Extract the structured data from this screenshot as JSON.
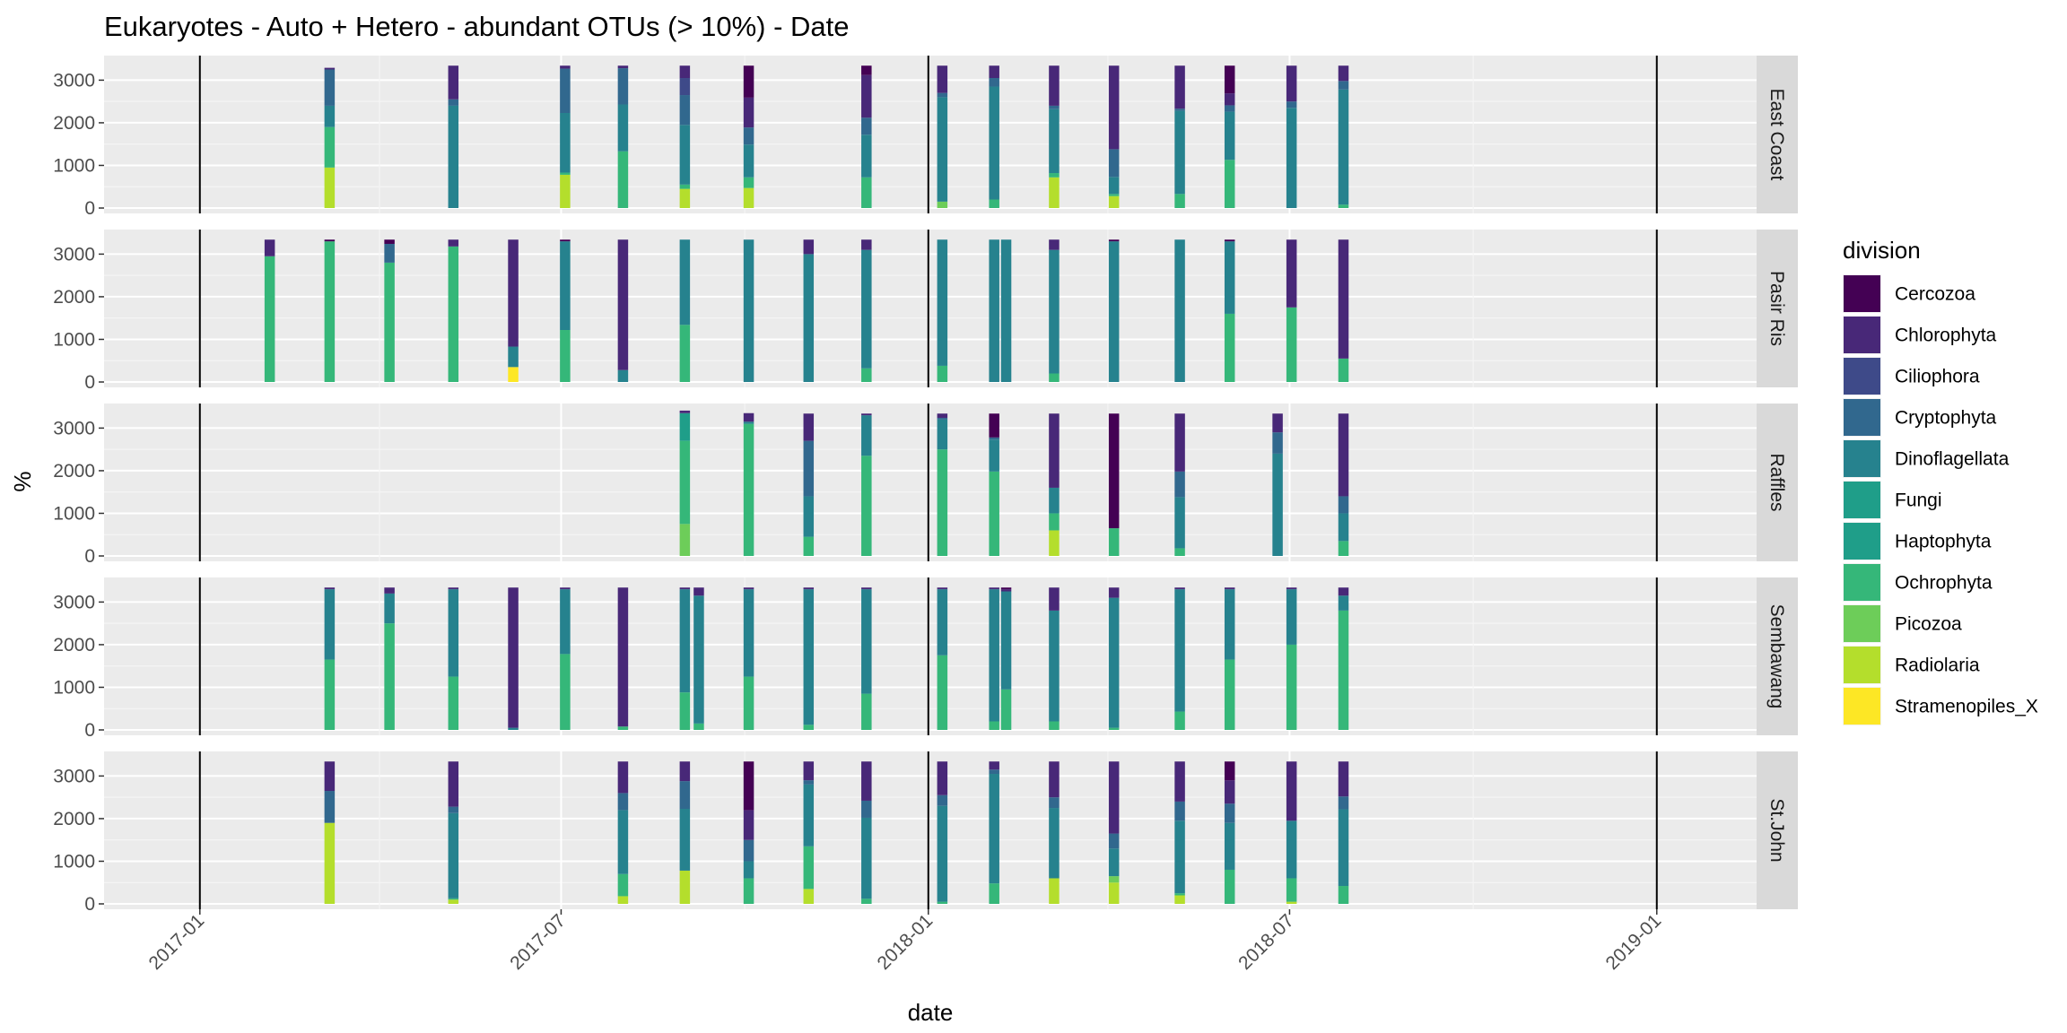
{
  "chart_data": {
    "type": "bar",
    "subtype": "stacked-bar-faceted",
    "title": "Eukaryotes - Auto + Hetero - abundant OTUs (> 10%) - Date",
    "xlabel": "date",
    "ylabel": "%",
    "ylim": [
      0,
      3450
    ],
    "yticks": [
      0,
      1000,
      2000,
      3000
    ],
    "xlim": [
      "2016-11-14",
      "2019-02-20"
    ],
    "xticks": [
      {
        "label": "2017-01",
        "date": "2017-01-01"
      },
      {
        "label": "2017-07",
        "date": "2017-07-01"
      },
      {
        "label": "2018-01",
        "date": "2018-01-01"
      },
      {
        "label": "2018-07",
        "date": "2018-07-01"
      },
      {
        "label": "2019-01",
        "date": "2019-01-01"
      }
    ],
    "vlines": [
      "2017-01-01",
      "2018-01-01",
      "2019-01-01"
    ],
    "grid": true,
    "legend_position": "right",
    "legend_title": "division",
    "divisions": [
      {
        "name": "Cercozoa",
        "color": "#440154"
      },
      {
        "name": "Chlorophyta",
        "color": "#482878"
      },
      {
        "name": "Ciliophora",
        "color": "#3E4A89"
      },
      {
        "name": "Cryptophyta",
        "color": "#31688E"
      },
      {
        "name": "Dinoflagellata",
        "color": "#26828E"
      },
      {
        "name": "Fungi",
        "color": "#1F9E89"
      },
      {
        "name": "Haptophyta",
        "color": "#1F9E89"
      },
      {
        "name": "Ochrophyta",
        "color": "#35B779"
      },
      {
        "name": "Picozoa",
        "color": "#6DCD59"
      },
      {
        "name": "Radiolaria",
        "color": "#B4DE2C"
      },
      {
        "name": "Stramenopiles_X",
        "color": "#FDE725"
      }
    ],
    "stack_order_bottom_to_top": [
      "Stramenopiles_X",
      "Radiolaria",
      "Picozoa",
      "Ochrophyta",
      "Haptophyta",
      "Fungi",
      "Dinoflagellata",
      "Cryptophyta",
      "Ciliophora",
      "Chlorophyta",
      "Cercozoa"
    ],
    "panels": [
      {
        "name": "East Coast",
        "samples": [
          {
            "date": "2017-03-07",
            "values": {
              "Radiolaria": 950,
              "Ochrophyta": 950,
              "Dinoflagellata": 500,
              "Cryptophyta": 850,
              "Chlorophyta": 40
            }
          },
          {
            "date": "2017-05-08",
            "values": {
              "Dinoflagellata": 2400,
              "Cryptophyta": 150,
              "Chlorophyta": 790
            }
          },
          {
            "date": "2017-07-03",
            "values": {
              "Radiolaria": 780,
              "Ochrophyta": 50,
              "Dinoflagellata": 1400,
              "Cryptophyta": 1040,
              "Chlorophyta": 70
            }
          },
          {
            "date": "2017-08-01",
            "values": {
              "Ochrophyta": 1330,
              "Dinoflagellata": 1100,
              "Cryptophyta": 850,
              "Chlorophyta": 60
            }
          },
          {
            "date": "2017-09-01",
            "values": {
              "Radiolaria": 450,
              "Ochrophyta": 100,
              "Dinoflagellata": 1400,
              "Cryptophyta": 700,
              "Ciliophora": 400,
              "Chlorophyta": 290
            }
          },
          {
            "date": "2017-10-03",
            "values": {
              "Radiolaria": 470,
              "Ochrophyta": 250,
              "Dinoflagellata": 770,
              "Cryptophyta": 400,
              "Chlorophyta": 700,
              "Cercozoa": 750
            }
          },
          {
            "date": "2017-12-01",
            "values": {
              "Ochrophyta": 720,
              "Dinoflagellata": 1000,
              "Cryptophyta": 400,
              "Chlorophyta": 1000,
              "Cercozoa": 220
            }
          },
          {
            "date": "2018-01-08",
            "values": {
              "Picozoa": 150,
              "Dinoflagellata": 2450,
              "Cryptophyta": 100,
              "Chlorophyta": 640
            }
          },
          {
            "date": "2018-02-03",
            "values": {
              "Ochrophyta": 200,
              "Dinoflagellata": 2650,
              "Cryptophyta": 200,
              "Chlorophyta": 290
            }
          },
          {
            "date": "2018-03-05",
            "values": {
              "Radiolaria": 720,
              "Ochrophyta": 100,
              "Dinoflagellata": 1500,
              "Cryptophyta": 80,
              "Chlorophyta": 940
            }
          },
          {
            "date": "2018-04-04",
            "values": {
              "Radiolaria": 280,
              "Ochrophyta": 50,
              "Dinoflagellata": 400,
              "Cryptophyta": 650,
              "Chlorophyta": 1960
            }
          },
          {
            "date": "2018-05-07",
            "values": {
              "Ochrophyta": 330,
              "Dinoflagellata": 1950,
              "Cryptophyta": 50,
              "Chlorophyta": 1010
            }
          },
          {
            "date": "2018-06-01",
            "values": {
              "Ochrophyta": 1130,
              "Dinoflagellata": 1130,
              "Cryptophyta": 150,
              "Chlorophyta": 280,
              "Cercozoa": 650
            }
          },
          {
            "date": "2018-07-02",
            "values": {
              "Dinoflagellata": 2350,
              "Cryptophyta": 150,
              "Chlorophyta": 840
            }
          },
          {
            "date": "2018-07-28",
            "values": {
              "Ochrophyta": 80,
              "Dinoflagellata": 2700,
              "Cryptophyta": 200,
              "Chlorophyta": 360
            }
          }
        ]
      },
      {
        "name": "Pasir Ris",
        "samples": [
          {
            "date": "2017-02-05",
            "values": {
              "Ochrophyta": 2950,
              "Chlorophyta": 390
            }
          },
          {
            "date": "2017-03-07",
            "values": {
              "Ochrophyta": 3300,
              "Cercozoa": 40
            }
          },
          {
            "date": "2017-04-06",
            "values": {
              "Ochrophyta": 2800,
              "Cryptophyta": 440,
              "Cercozoa": 100
            }
          },
          {
            "date": "2017-05-08",
            "values": {
              "Ochrophyta": 3180,
              "Chlorophyta": 160
            }
          },
          {
            "date": "2017-06-07",
            "values": {
              "Stramenopiles_X": 350,
              "Dinoflagellata": 480,
              "Chlorophyta": 2510
            }
          },
          {
            "date": "2017-07-03",
            "values": {
              "Ochrophyta": 1220,
              "Dinoflagellata": 2080,
              "Cercozoa": 40
            }
          },
          {
            "date": "2017-08-01",
            "values": {
              "Dinoflagellata": 280,
              "Chlorophyta": 3060
            }
          },
          {
            "date": "2017-09-01",
            "values": {
              "Ochrophyta": 1340,
              "Dinoflagellata": 2000
            }
          },
          {
            "date": "2017-10-03",
            "values": {
              "Dinoflagellata": 3340
            }
          },
          {
            "date": "2017-11-02",
            "values": {
              "Dinoflagellata": 3000,
              "Chlorophyta": 340
            }
          },
          {
            "date": "2017-12-01",
            "values": {
              "Ochrophyta": 320,
              "Dinoflagellata": 2780,
              "Chlorophyta": 240
            }
          },
          {
            "date": "2018-01-08",
            "values": {
              "Ochrophyta": 380,
              "Dinoflagellata": 2960
            }
          },
          {
            "date": "2018-02-03",
            "values": {
              "Dinoflagellata": 3340
            }
          },
          {
            "date": "2018-02-09",
            "values": {
              "Dinoflagellata": 3340
            }
          },
          {
            "date": "2018-03-05",
            "values": {
              "Ochrophyta": 200,
              "Dinoflagellata": 2900,
              "Chlorophyta": 240
            }
          },
          {
            "date": "2018-04-04",
            "values": {
              "Dinoflagellata": 3300,
              "Cercozoa": 40
            }
          },
          {
            "date": "2018-05-07",
            "values": {
              "Dinoflagellata": 3340
            }
          },
          {
            "date": "2018-06-01",
            "values": {
              "Ochrophyta": 1600,
              "Dinoflagellata": 1700,
              "Cercozoa": 40
            }
          },
          {
            "date": "2018-07-02",
            "values": {
              "Ochrophyta": 1750,
              "Chlorophyta": 1590
            }
          },
          {
            "date": "2018-07-28",
            "values": {
              "Ochrophyta": 550,
              "Chlorophyta": 2790
            }
          }
        ]
      },
      {
        "name": "Raffles",
        "samples": [
          {
            "date": "2017-09-01",
            "values": {
              "Picozoa": 750,
              "Ochrophyta": 1950,
              "Fungi": 650,
              "Chlorophyta": 60
            }
          },
          {
            "date": "2017-10-03",
            "values": {
              "Ochrophyta": 3100,
              "Dinoflagellata": 50,
              "Chlorophyta": 200
            }
          },
          {
            "date": "2017-11-02",
            "values": {
              "Ochrophyta": 450,
              "Dinoflagellata": 950,
              "Cryptophyta": 1300,
              "Chlorophyta": 640
            }
          },
          {
            "date": "2017-12-01",
            "values": {
              "Ochrophyta": 2350,
              "Dinoflagellata": 950,
              "Chlorophyta": 40
            }
          },
          {
            "date": "2018-01-08",
            "values": {
              "Ochrophyta": 2500,
              "Dinoflagellata": 700,
              "Cryptophyta": 40,
              "Chlorophyta": 100
            }
          },
          {
            "date": "2018-02-03",
            "values": {
              "Ochrophyta": 1980,
              "Dinoflagellata": 750,
              "Cryptophyta": 50,
              "Cercozoa": 560
            }
          },
          {
            "date": "2018-03-05",
            "values": {
              "Radiolaria": 600,
              "Ochrophyta": 400,
              "Dinoflagellata": 600,
              "Chlorophyta": 1740
            }
          },
          {
            "date": "2018-04-04",
            "values": {
              "Ochrophyta": 650,
              "Cercozoa": 2690
            }
          },
          {
            "date": "2018-05-07",
            "values": {
              "Ochrophyta": 180,
              "Dinoflagellata": 1200,
              "Cryptophyta": 600,
              "Chlorophyta": 1360
            }
          },
          {
            "date": "2018-06-25",
            "values": {
              "Dinoflagellata": 2400,
              "Cryptophyta": 500,
              "Chlorophyta": 440
            }
          },
          {
            "date": "2018-07-28",
            "values": {
              "Ochrophyta": 350,
              "Dinoflagellata": 650,
              "Cryptophyta": 400,
              "Chlorophyta": 1940
            }
          }
        ]
      },
      {
        "name": "Sembawang",
        "samples": [
          {
            "date": "2017-03-07",
            "values": {
              "Ochrophyta": 1650,
              "Dinoflagellata": 1650,
              "Chlorophyta": 40
            }
          },
          {
            "date": "2017-04-06",
            "values": {
              "Ochrophyta": 2500,
              "Dinoflagellata": 700,
              "Chlorophyta": 140
            }
          },
          {
            "date": "2017-05-08",
            "values": {
              "Ochrophyta": 1250,
              "Dinoflagellata": 2050,
              "Chlorophyta": 40
            }
          },
          {
            "date": "2017-06-07",
            "values": {
              "Dinoflagellata": 50,
              "Chlorophyta": 3290
            }
          },
          {
            "date": "2017-07-03",
            "values": {
              "Ochrophyta": 1780,
              "Dinoflagellata": 1520,
              "Chlorophyta": 40
            }
          },
          {
            "date": "2017-08-01",
            "values": {
              "Ochrophyta": 80,
              "Chlorophyta": 3260
            }
          },
          {
            "date": "2017-09-01",
            "values": {
              "Ochrophyta": 880,
              "Dinoflagellata": 2420,
              "Chlorophyta": 40
            }
          },
          {
            "date": "2017-09-08",
            "values": {
              "Ochrophyta": 150,
              "Dinoflagellata": 3000,
              "Chlorophyta": 190
            }
          },
          {
            "date": "2017-10-03",
            "values": {
              "Ochrophyta": 1250,
              "Dinoflagellata": 2050,
              "Chlorophyta": 40
            }
          },
          {
            "date": "2017-11-02",
            "values": {
              "Ochrophyta": 120,
              "Dinoflagellata": 3180,
              "Chlorophyta": 40
            }
          },
          {
            "date": "2017-12-01",
            "values": {
              "Ochrophyta": 850,
              "Dinoflagellata": 2450,
              "Chlorophyta": 40
            }
          },
          {
            "date": "2018-01-08",
            "values": {
              "Ochrophyta": 1750,
              "Dinoflagellata": 1550,
              "Chlorophyta": 40
            }
          },
          {
            "date": "2018-02-03",
            "values": {
              "Ochrophyta": 200,
              "Dinoflagellata": 3100,
              "Chlorophyta": 40
            }
          },
          {
            "date": "2018-02-09",
            "values": {
              "Ochrophyta": 950,
              "Dinoflagellata": 2300,
              "Chlorophyta": 50,
              "Cercozoa": 40
            }
          },
          {
            "date": "2018-03-05",
            "values": {
              "Ochrophyta": 200,
              "Dinoflagellata": 2600,
              "Chlorophyta": 540
            }
          },
          {
            "date": "2018-04-04",
            "values": {
              "Ochrophyta": 50,
              "Dinoflagellata": 3050,
              "Chlorophyta": 240
            }
          },
          {
            "date": "2018-05-07",
            "values": {
              "Ochrophyta": 430,
              "Dinoflagellata": 2870,
              "Chlorophyta": 40
            }
          },
          {
            "date": "2018-06-01",
            "values": {
              "Ochrophyta": 1650,
              "Dinoflagellata": 1650,
              "Chlorophyta": 40
            }
          },
          {
            "date": "2018-07-02",
            "values": {
              "Ochrophyta": 2000,
              "Dinoflagellata": 1300,
              "Chlorophyta": 40
            }
          },
          {
            "date": "2018-07-28",
            "values": {
              "Ochrophyta": 2800,
              "Dinoflagellata": 350,
              "Chlorophyta": 190
            }
          }
        ]
      },
      {
        "name": "St.John",
        "samples": [
          {
            "date": "2017-03-07",
            "values": {
              "Radiolaria": 1900,
              "Cryptophyta": 750,
              "Chlorophyta": 690
            }
          },
          {
            "date": "2017-05-08",
            "values": {
              "Radiolaria": 100,
              "Ochrophyta": 30,
              "Dinoflagellata": 2000,
              "Cryptophyta": 150,
              "Chlorophyta": 1060
            }
          },
          {
            "date": "2017-08-01",
            "values": {
              "Radiolaria": 180,
              "Ochrophyta": 520,
              "Dinoflagellata": 1500,
              "Cryptophyta": 400,
              "Chlorophyta": 740
            }
          },
          {
            "date": "2017-09-01",
            "values": {
              "Radiolaria": 780,
              "Dinoflagellata": 1450,
              "Cryptophyta": 650,
              "Chlorophyta": 460
            }
          },
          {
            "date": "2017-10-03",
            "values": {
              "Ochrophyta": 600,
              "Dinoflagellata": 400,
              "Cryptophyta": 500,
              "Chlorophyta": 700,
              "Cercozoa": 1140
            }
          },
          {
            "date": "2017-11-02",
            "values": {
              "Radiolaria": 350,
              "Ochrophyta": 1000,
              "Dinoflagellata": 1450,
              "Cryptophyta": 100,
              "Chlorophyta": 440
            }
          },
          {
            "date": "2017-12-01",
            "values": {
              "Ochrophyta": 120,
              "Dinoflagellata": 1900,
              "Cryptophyta": 400,
              "Chlorophyta": 920
            }
          },
          {
            "date": "2018-01-08",
            "values": {
              "Ochrophyta": 50,
              "Dinoflagellata": 2250,
              "Cryptophyta": 250,
              "Chlorophyta": 790
            }
          },
          {
            "date": "2018-02-03",
            "values": {
              "Ochrophyta": 480,
              "Dinoflagellata": 2570,
              "Cryptophyta": 100,
              "Chlorophyta": 190
            }
          },
          {
            "date": "2018-03-05",
            "values": {
              "Radiolaria": 600,
              "Dinoflagellata": 1650,
              "Cryptophyta": 250,
              "Chlorophyta": 840
            }
          },
          {
            "date": "2018-04-04",
            "values": {
              "Radiolaria": 500,
              "Picozoa": 150,
              "Dinoflagellata": 650,
              "Cryptophyta": 350,
              "Chlorophyta": 1690
            }
          },
          {
            "date": "2018-05-07",
            "values": {
              "Radiolaria": 200,
              "Ochrophyta": 50,
              "Dinoflagellata": 1700,
              "Cryptophyta": 450,
              "Chlorophyta": 940
            }
          },
          {
            "date": "2018-06-01",
            "values": {
              "Ochrophyta": 800,
              "Dinoflagellata": 1100,
              "Cryptophyta": 450,
              "Chlorophyta": 550,
              "Cercozoa": 440
            }
          },
          {
            "date": "2018-07-02",
            "values": {
              "Radiolaria": 50,
              "Ochrophyta": 550,
              "Dinoflagellata": 1350,
              "Chlorophyta": 1390
            }
          },
          {
            "date": "2018-07-28",
            "values": {
              "Ochrophyta": 420,
              "Dinoflagellata": 1800,
              "Cryptophyta": 300,
              "Chlorophyta": 820
            }
          }
        ]
      }
    ]
  }
}
